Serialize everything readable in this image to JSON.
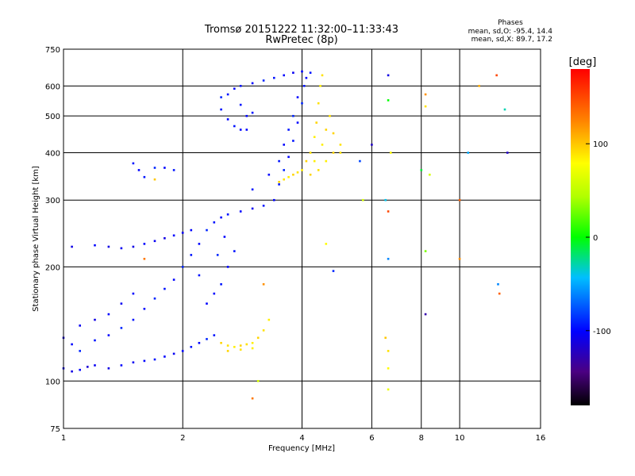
{
  "chart_data": {
    "type": "scatter",
    "title": "Tromsø 20151222 11:32:00–11:33:43",
    "subtitle": "RwPretec (8p)",
    "xlabel": "Frequency [MHz]",
    "ylabel": "Stationary phase Virtual Height [km]",
    "x_scale": "log",
    "y_scale": "log",
    "xlim": [
      1,
      16
    ],
    "ylim": [
      75,
      750
    ],
    "x_ticks": [
      1,
      2,
      4,
      6,
      8,
      10,
      16
    ],
    "x_tick_labels": [
      "1",
      "2",
      "4",
      "6",
      "8",
      "10",
      "16"
    ],
    "y_ticks": [
      75,
      100,
      200,
      300,
      400,
      500,
      600,
      750
    ],
    "y_tick_labels": [
      "75",
      "100",
      "200",
      "300",
      "400",
      "500",
      "600",
      "750"
    ],
    "grid": true,
    "phases_box": {
      "title": "Phases",
      "line_o": "mean, sd,O:  -95.4, 14.4",
      "line_x": "mean, sd,X:  89.7, 17.2"
    },
    "colorbar": {
      "label": "[deg]",
      "range": [
        -180,
        180
      ],
      "ticks": [
        100,
        0,
        -100
      ],
      "tick_labels": [
        "100",
        "0",
        "-100"
      ],
      "colormap": "rainbow"
    },
    "series": [
      {
        "points": [
          [
            1.0,
            108,
            -105
          ],
          [
            1.05,
            106,
            -110
          ],
          [
            1.1,
            107,
            -100
          ],
          [
            1.15,
            109,
            -115
          ],
          [
            1.2,
            110,
            -105
          ],
          [
            1.3,
            108,
            -110
          ],
          [
            1.4,
            110,
            -100
          ],
          [
            1.5,
            112,
            -105
          ],
          [
            1.6,
            113,
            -100
          ],
          [
            1.7,
            114,
            -95
          ],
          [
            1.8,
            116,
            -100
          ],
          [
            1.9,
            118,
            -105
          ],
          [
            2.0,
            120,
            -100
          ],
          [
            2.1,
            123,
            -95
          ],
          [
            2.2,
            126,
            -100
          ],
          [
            2.3,
            129,
            -90
          ],
          [
            2.4,
            132,
            -95
          ],
          [
            1.05,
            125,
            -100
          ],
          [
            1.1,
            120,
            -90
          ],
          [
            1.2,
            128,
            -95
          ],
          [
            1.3,
            132,
            -100
          ],
          [
            1.4,
            138,
            -90
          ],
          [
            1.5,
            145,
            -95
          ],
          [
            1.6,
            155,
            -100
          ],
          [
            1.7,
            165,
            -90
          ],
          [
            1.8,
            175,
            -95
          ],
          [
            1.9,
            185,
            -100
          ],
          [
            2.0,
            200,
            -90
          ],
          [
            2.1,
            215,
            -95
          ],
          [
            2.2,
            230,
            -100
          ],
          [
            2.3,
            250,
            -90
          ],
          [
            2.4,
            262,
            -95
          ],
          [
            2.5,
            270,
            -100
          ],
          [
            2.6,
            275,
            -95
          ],
          [
            2.8,
            280,
            -100
          ],
          [
            3.0,
            285,
            -105
          ],
          [
            3.2,
            290,
            -95
          ],
          [
            3.4,
            300,
            -100
          ],
          [
            3.5,
            330,
            -95
          ],
          [
            3.6,
            360,
            -90
          ],
          [
            3.7,
            390,
            -100
          ],
          [
            3.8,
            430,
            -95
          ],
          [
            3.9,
            480,
            -100
          ],
          [
            4.0,
            540,
            -90
          ],
          [
            4.05,
            600,
            -95
          ],
          [
            4.1,
            630,
            -100
          ],
          [
            1.05,
            226,
            -110
          ],
          [
            1.2,
            228,
            -100
          ],
          [
            1.3,
            226,
            -110
          ],
          [
            1.4,
            224,
            -105
          ],
          [
            1.5,
            226,
            -110
          ],
          [
            1.6,
            230,
            -100
          ],
          [
            1.7,
            234,
            -105
          ],
          [
            1.8,
            238,
            -110
          ],
          [
            1.9,
            242,
            -100
          ],
          [
            2.0,
            246,
            -105
          ],
          [
            2.1,
            250,
            -100
          ],
          [
            1.5,
            375,
            -95
          ],
          [
            1.55,
            360,
            -100
          ],
          [
            1.6,
            345,
            -95
          ],
          [
            1.7,
            365,
            -90
          ],
          [
            1.8,
            365,
            -100
          ],
          [
            1.9,
            360,
            -95
          ],
          [
            2.5,
            520,
            -95
          ],
          [
            2.6,
            490,
            -100
          ],
          [
            2.7,
            470,
            -95
          ],
          [
            2.8,
            460,
            -100
          ],
          [
            2.5,
            560,
            -90
          ],
          [
            2.6,
            570,
            -95
          ],
          [
            2.7,
            590,
            -100
          ],
          [
            2.8,
            600,
            -95
          ],
          [
            3.0,
            610,
            -100
          ],
          [
            3.2,
            620,
            -90
          ],
          [
            3.4,
            630,
            -95
          ],
          [
            3.6,
            640,
            -100
          ],
          [
            3.8,
            650,
            -105
          ],
          [
            4.0,
            655,
            -100
          ],
          [
            4.2,
            650,
            -95
          ],
          [
            2.8,
            535,
            -95
          ],
          [
            2.9,
            500,
            -100
          ],
          [
            3.0,
            510,
            -95
          ],
          [
            2.9,
            460,
            -100
          ],
          [
            2.4,
            170,
            -100
          ],
          [
            2.5,
            180,
            -95
          ],
          [
            2.6,
            200,
            -100
          ],
          [
            2.7,
            220,
            -95
          ],
          [
            2.3,
            160,
            -100
          ],
          [
            2.2,
            190,
            -95
          ],
          [
            2.45,
            215,
            -90
          ],
          [
            2.55,
            240,
            -100
          ],
          [
            3.0,
            320,
            -95
          ],
          [
            3.3,
            350,
            -100
          ],
          [
            3.5,
            380,
            -95
          ],
          [
            3.6,
            420,
            -100
          ],
          [
            3.7,
            460,
            -95
          ],
          [
            3.8,
            500,
            -90
          ],
          [
            3.9,
            560,
            -100
          ],
          [
            1.0,
            130,
            -110
          ],
          [
            1.1,
            140,
            -105
          ],
          [
            1.2,
            145,
            -110
          ],
          [
            1.3,
            150,
            -100
          ],
          [
            1.4,
            160,
            -105
          ],
          [
            1.5,
            170,
            -100
          ]
        ],
        "mode": "O"
      },
      {
        "points": [
          [
            3.5,
            335,
            95
          ],
          [
            3.6,
            340,
            90
          ],
          [
            3.7,
            345,
            85
          ],
          [
            3.8,
            350,
            95
          ],
          [
            3.9,
            355,
            90
          ],
          [
            4.0,
            360,
            85
          ],
          [
            4.1,
            380,
            95
          ],
          [
            4.2,
            400,
            90
          ],
          [
            4.3,
            440,
            85
          ],
          [
            4.35,
            480,
            95
          ],
          [
            4.4,
            540,
            90
          ],
          [
            4.45,
            600,
            85
          ],
          [
            4.5,
            640,
            90
          ],
          [
            4.2,
            350,
            95
          ],
          [
            4.4,
            360,
            90
          ],
          [
            4.6,
            380,
            85
          ],
          [
            4.8,
            400,
            95
          ],
          [
            5.0,
            420,
            90
          ],
          [
            4.5,
            420,
            85
          ],
          [
            4.6,
            460,
            95
          ],
          [
            4.7,
            500,
            90
          ],
          [
            4.3,
            380,
            85
          ],
          [
            4.8,
            450,
            95
          ],
          [
            5.0,
            400,
            90
          ],
          [
            2.5,
            126,
            95
          ],
          [
            2.6,
            124,
            90
          ],
          [
            2.7,
            123,
            85
          ],
          [
            2.8,
            124,
            95
          ],
          [
            2.9,
            125,
            90
          ],
          [
            3.0,
            126,
            85
          ],
          [
            3.1,
            130,
            95
          ],
          [
            3.2,
            136,
            90
          ],
          [
            3.3,
            145,
            85
          ],
          [
            2.6,
            120,
            95
          ],
          [
            2.8,
            121,
            90
          ],
          [
            3.0,
            122,
            85
          ]
        ],
        "mode": "X"
      },
      {
        "points": [
          [
            6.6,
            640,
            -110
          ],
          [
            6.6,
            550,
            0
          ],
          [
            6.7,
            400,
            80
          ],
          [
            6.5,
            300,
            -40
          ],
          [
            6.6,
            280,
            150
          ],
          [
            6.6,
            210,
            -60
          ],
          [
            6.5,
            130,
            100
          ],
          [
            6.6,
            120,
            90
          ],
          [
            6.6,
            108,
            80
          ],
          [
            6.6,
            95,
            70
          ],
          [
            8.2,
            570,
            120
          ],
          [
            8.2,
            530,
            90
          ],
          [
            8.4,
            350,
            60
          ],
          [
            8.2,
            220,
            30
          ],
          [
            8.2,
            150,
            -130
          ],
          [
            10.0,
            300,
            140
          ],
          [
            10.0,
            210,
            120
          ],
          [
            12.4,
            640,
            150
          ],
          [
            13.0,
            520,
            -30
          ],
          [
            13.2,
            400,
            -120
          ],
          [
            12.5,
            180,
            -60
          ],
          [
            12.6,
            170,
            140
          ],
          [
            11.2,
            600,
            110
          ],
          [
            10.5,
            400,
            -50
          ],
          [
            8.0,
            360,
            -10
          ],
          [
            6.0,
            420,
            -120
          ],
          [
            5.6,
            380,
            -80
          ],
          [
            5.7,
            300,
            60
          ],
          [
            4.6,
            230,
            80
          ],
          [
            4.8,
            195,
            -90
          ],
          [
            3.2,
            180,
            120
          ],
          [
            3.1,
            100,
            60
          ],
          [
            3.0,
            90,
            130
          ],
          [
            1.6,
            210,
            130
          ],
          [
            1.7,
            340,
            100
          ]
        ],
        "mode": "scattered"
      }
    ]
  }
}
